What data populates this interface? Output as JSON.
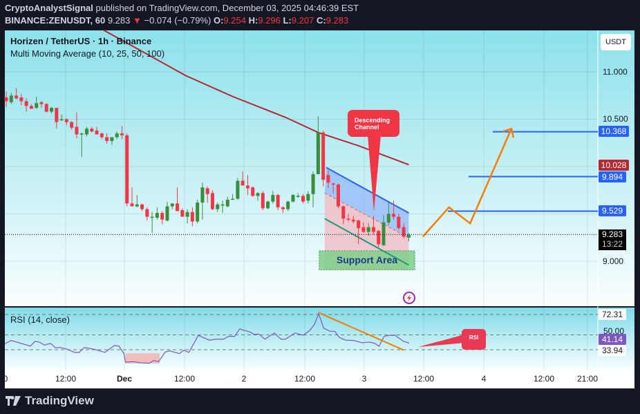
{
  "header": {
    "author": "CryptoAnalystSignal",
    "published": "published on TradingView.com, December 03, 2025 04:46:39 EST",
    "symbol": "BINANCE:ZENUSDT, 60",
    "last": "9.283",
    "change": "−0.074 (−0.79%)",
    "o_label": "O:",
    "o": "9.254",
    "h_label": "H:",
    "h": "9.296",
    "l_label": "L:",
    "l": "9.207",
    "c_label": "C:",
    "c": "9.283"
  },
  "legend": {
    "title": "Horizen / TetherUS · 1h · Binance",
    "indicator": "Multi Moving Average (10, 25, 50, 100)",
    "rsi": "RSI (14, close)"
  },
  "price_axis": {
    "currency": "USDT",
    "ticks": [
      "11.000",
      "10.500",
      "9.000"
    ],
    "tags": {
      "t10368": "10.368",
      "t10028": "10.028",
      "t9894": "9.894",
      "t9529": "9.529",
      "last": "9.283",
      "countdown": "13:22"
    },
    "rsi_ticks": {
      "upper": "72.31",
      "mid": "50.00",
      "current": "41.14",
      "lower": "33.94"
    }
  },
  "time_axis": [
    "0",
    "12:00",
    "Dec",
    "12:00",
    "2",
    "12:00",
    "3",
    "12:00",
    "4",
    "12:00",
    "21:00"
  ],
  "annotations": {
    "channel_label": "Descending Channel",
    "support_label": "Support Area",
    "rsi_label": "RSI"
  },
  "brand": "TradingView",
  "colors": {
    "up": "#388e3c",
    "down": "#f23645",
    "ma": "#b22833",
    "levels": "#2962ff",
    "projection": "#f57c00",
    "rsi": "#7e57c2"
  },
  "chart_data": {
    "type": "candlestick",
    "title": "Horizen / TetherUS · 1h · Binance",
    "ylim": [
      8.5,
      11.44
    ],
    "candles_ohlc": [
      [
        10.73,
        10.79,
        10.63,
        10.69
      ],
      [
        10.68,
        10.78,
        10.66,
        10.75
      ],
      [
        10.75,
        10.83,
        10.71,
        10.72
      ],
      [
        10.73,
        10.77,
        10.65,
        10.69
      ],
      [
        10.69,
        10.72,
        10.58,
        10.64
      ],
      [
        10.64,
        10.66,
        10.61,
        10.61
      ],
      [
        10.62,
        10.74,
        10.61,
        10.67
      ],
      [
        10.68,
        10.69,
        10.62,
        10.66
      ],
      [
        10.66,
        10.67,
        10.57,
        10.58
      ],
      [
        10.58,
        10.63,
        10.56,
        10.62
      ],
      [
        10.62,
        10.62,
        10.4,
        10.47
      ],
      [
        10.49,
        10.55,
        10.48,
        10.5
      ],
      [
        10.5,
        10.51,
        10.44,
        10.47
      ],
      [
        10.47,
        10.48,
        10.39,
        10.41
      ],
      [
        10.42,
        10.57,
        10.3,
        10.34
      ],
      [
        10.35,
        10.36,
        10.1,
        10.35
      ],
      [
        10.34,
        10.42,
        10.32,
        10.4
      ],
      [
        10.4,
        10.42,
        10.36,
        10.37
      ],
      [
        10.38,
        10.42,
        10.34,
        10.34
      ],
      [
        10.35,
        10.36,
        10.29,
        10.31
      ],
      [
        10.31,
        10.35,
        10.24,
        10.27
      ],
      [
        10.27,
        10.3,
        10.23,
        10.31
      ],
      [
        10.31,
        10.37,
        10.29,
        10.35
      ],
      [
        10.35,
        10.43,
        10.29,
        10.33
      ],
      [
        10.33,
        10.35,
        9.58,
        9.61
      ],
      [
        9.61,
        9.78,
        9.58,
        9.58
      ],
      [
        9.58,
        9.7,
        9.57,
        9.6
      ],
      [
        9.6,
        9.61,
        9.53,
        9.55
      ],
      [
        9.55,
        9.57,
        9.43,
        9.47
      ],
      [
        9.47,
        9.52,
        9.3,
        9.47
      ],
      [
        9.46,
        9.57,
        9.44,
        9.51
      ],
      [
        9.51,
        9.53,
        9.39,
        9.44
      ],
      [
        9.43,
        9.63,
        9.42,
        9.58
      ],
      [
        9.58,
        9.61,
        9.55,
        9.61
      ],
      [
        9.61,
        9.78,
        9.6,
        9.53
      ],
      [
        9.54,
        9.56,
        9.47,
        9.47
      ],
      [
        9.47,
        9.55,
        9.4,
        9.52
      ],
      [
        9.52,
        9.57,
        9.37,
        9.42
      ],
      [
        9.42,
        9.65,
        9.4,
        9.62
      ],
      [
        9.62,
        9.83,
        9.44,
        9.78
      ],
      [
        9.77,
        9.79,
        9.62,
        9.71
      ],
      [
        9.72,
        9.75,
        9.54,
        9.55
      ],
      [
        9.55,
        9.62,
        9.52,
        9.6
      ],
      [
        9.6,
        9.64,
        9.51,
        9.6
      ],
      [
        9.58,
        9.68,
        9.57,
        9.65
      ],
      [
        9.66,
        9.71,
        9.65,
        9.66
      ],
      [
        9.66,
        9.88,
        9.65,
        9.85
      ],
      [
        9.85,
        9.95,
        9.83,
        9.8
      ],
      [
        9.8,
        9.91,
        9.7,
        9.77
      ],
      [
        9.78,
        9.79,
        9.68,
        9.69
      ],
      [
        9.69,
        9.73,
        9.64,
        9.72
      ],
      [
        9.72,
        9.74,
        9.54,
        9.56
      ],
      [
        9.56,
        9.64,
        9.55,
        9.63
      ],
      [
        9.63,
        9.74,
        9.61,
        9.7
      ],
      [
        9.7,
        9.71,
        9.54,
        9.57
      ],
      [
        9.57,
        9.58,
        9.51,
        9.55
      ],
      [
        9.55,
        9.64,
        9.53,
        9.63
      ],
      [
        9.63,
        9.71,
        9.62,
        9.7
      ],
      [
        9.69,
        9.72,
        9.67,
        9.69
      ],
      [
        9.69,
        9.71,
        9.61,
        9.63
      ],
      [
        9.64,
        9.74,
        9.61,
        9.71
      ],
      [
        9.71,
        9.95,
        9.57,
        9.92
      ],
      [
        9.92,
        10.53,
        9.92,
        10.36
      ],
      [
        10.36,
        10.38,
        9.79,
        9.86
      ],
      [
        9.91,
        9.96,
        9.77,
        9.83
      ],
      [
        9.82,
        9.83,
        9.72,
        9.81
      ],
      [
        9.81,
        9.82,
        9.56,
        9.58
      ],
      [
        9.58,
        9.59,
        9.39,
        9.45
      ],
      [
        9.45,
        9.5,
        9.42,
        9.44
      ],
      [
        9.44,
        9.48,
        9.4,
        9.42
      ],
      [
        9.43,
        9.44,
        9.18,
        9.35
      ],
      [
        9.36,
        9.41,
        9.3,
        9.31
      ],
      [
        9.31,
        9.4,
        9.27,
        9.36
      ],
      [
        9.36,
        9.48,
        9.28,
        9.31
      ],
      [
        9.32,
        9.33,
        9.15,
        9.18
      ],
      [
        9.17,
        9.49,
        9.16,
        9.41
      ],
      [
        9.41,
        9.62,
        9.38,
        9.5
      ],
      [
        9.5,
        9.64,
        9.44,
        9.47
      ],
      [
        9.47,
        9.5,
        9.33,
        9.35
      ],
      [
        9.36,
        9.4,
        9.24,
        9.26
      ],
      [
        9.25,
        9.3,
        9.21,
        9.28
      ]
    ],
    "ma_line": [
      [
        19.4,
        11.44
      ],
      [
        35.7,
        10.96
      ],
      [
        45,
        10.74
      ],
      [
        55.5,
        10.52
      ],
      [
        62,
        10.36
      ],
      [
        70,
        10.22
      ],
      [
        80,
        10.02
      ]
    ],
    "levels": [
      10.368,
      9.894,
      9.529
    ],
    "last_price": 9.283,
    "channel": {
      "upper": [
        [
          63.6,
          9.99
        ],
        [
          80,
          9.51
        ]
      ],
      "mid": [
        [
          63.3,
          9.72
        ],
        [
          80,
          9.25
        ]
      ],
      "lower": [
        [
          63.3,
          9.45
        ],
        [
          80,
          8.96
        ]
      ]
    },
    "support_area": {
      "from_idx": 62.2,
      "to_idx": 81.2,
      "top": 9.11,
      "bottom": 8.91
    },
    "projection": [
      [
        82.8,
        9.26
      ],
      [
        88,
        9.57
      ],
      [
        92.2,
        9.4
      ],
      [
        100.4,
        10.4
      ]
    ],
    "rsi": {
      "ylim": [
        14,
        80
      ],
      "levels": [
        72.31,
        50,
        33.94
      ],
      "current": 41.14,
      "points": [
        [
          -0.3,
          40.5
        ],
        [
          1.0,
          44.0
        ],
        [
          4.8,
          37.9
        ],
        [
          5.7,
          43.0
        ],
        [
          6.6,
          42.2
        ],
        [
          7.6,
          39.0
        ],
        [
          8.8,
          40.9
        ],
        [
          9.8,
          36.0
        ],
        [
          10.7,
          36.4
        ],
        [
          12.0,
          34.7
        ],
        [
          13.6,
          31.0
        ],
        [
          14.5,
          31.0
        ],
        [
          15.5,
          36.4
        ],
        [
          17.7,
          34.2
        ],
        [
          19.6,
          31.0
        ],
        [
          21.5,
          38.5
        ],
        [
          22.4,
          37.9
        ],
        [
          23.4,
          29.7
        ],
        [
          23.7,
          20.4
        ],
        [
          25.2,
          20.9
        ],
        [
          26.8,
          19.7
        ],
        [
          28.4,
          19.2
        ],
        [
          29.3,
          22.2
        ],
        [
          30.3,
          20.9
        ],
        [
          31.6,
          31.5
        ],
        [
          32.5,
          32.7
        ],
        [
          34.4,
          29.7
        ],
        [
          35.3,
          33.4
        ],
        [
          36.3,
          31.0
        ],
        [
          38.2,
          49.7
        ],
        [
          39.1,
          47.3
        ],
        [
          40.4,
          44.3
        ],
        [
          41.6,
          45.4
        ],
        [
          43.2,
          45.4
        ],
        [
          44.2,
          48.5
        ],
        [
          45.4,
          48.5
        ],
        [
          46.4,
          56.5
        ],
        [
          48.6,
          53.0
        ],
        [
          49.2,
          50.5
        ],
        [
          50.2,
          51.0
        ],
        [
          51.4,
          45.4
        ],
        [
          53.3,
          52.2
        ],
        [
          54.6,
          45.4
        ],
        [
          55.5,
          45.4
        ],
        [
          57.4,
          52.2
        ],
        [
          59.0,
          49.7
        ],
        [
          60.3,
          54.8
        ],
        [
          61.2,
          61.0
        ],
        [
          62.1,
          73.0
        ],
        [
          63.1,
          57.3
        ],
        [
          64.4,
          54.0
        ],
        [
          65.3,
          54.0
        ],
        [
          66.2,
          47.3
        ],
        [
          67.5,
          44.3
        ],
        [
          69.1,
          44.0
        ],
        [
          70.7,
          41.5
        ],
        [
          72.2,
          42.2
        ],
        [
          73.2,
          41.0
        ],
        [
          74.1,
          37.7
        ],
        [
          75.1,
          48.5
        ],
        [
          76.0,
          49.5
        ],
        [
          77.3,
          49.7
        ],
        [
          78.9,
          43.3
        ],
        [
          80.1,
          41.1
        ]
      ],
      "trendline": [
        [
          62,
          74.5
        ],
        [
          79,
          33.5
        ]
      ]
    }
  }
}
